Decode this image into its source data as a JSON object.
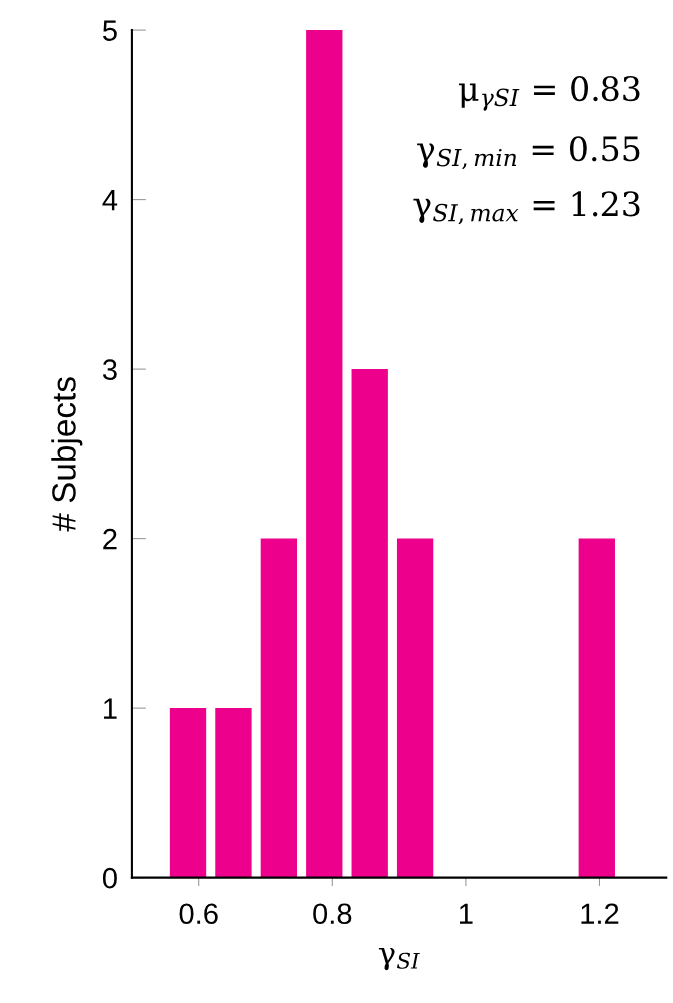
{
  "chart_data": {
    "type": "histogram",
    "bins": [
      0.55,
      0.618,
      0.686,
      0.754,
      0.822,
      0.89,
      0.958,
      1.026,
      1.094,
      1.162,
      1.23
    ],
    "values": [
      1,
      1,
      2,
      5,
      3,
      2,
      0,
      0,
      0,
      2
    ],
    "color": "#ec008c",
    "xlabel": "γ$_{SI}$",
    "ylabel": "# Subjects",
    "xlim": [
      0.5,
      1.3
    ],
    "xticks": [
      0.6,
      0.8,
      1,
      1.2
    ],
    "ylim": [
      0,
      5
    ],
    "yticks": [
      0,
      1,
      2,
      3,
      4,
      5
    ],
    "annotations": [
      "μ$_{γSI}$ = 0.83",
      "γ$_{SI,min}$ = 0.55",
      "γ$_{SI,max}$ = 1.23"
    ],
    "grid": false,
    "legend": false
  }
}
